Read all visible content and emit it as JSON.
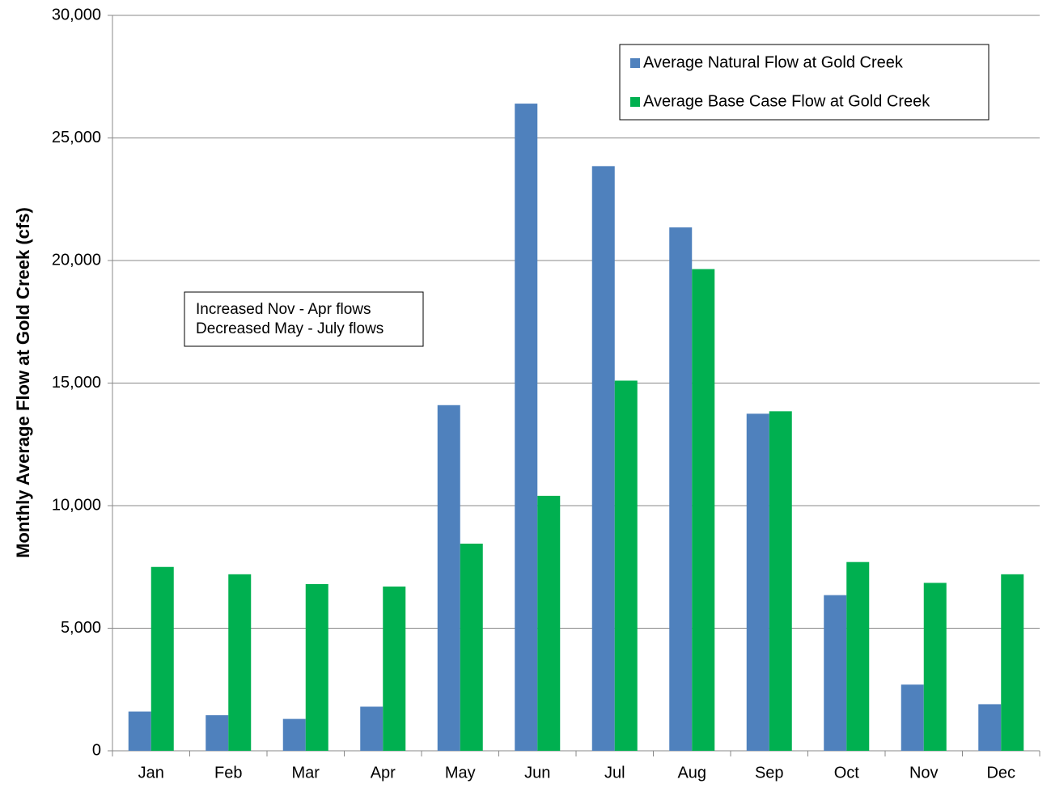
{
  "chart_data": {
    "type": "bar",
    "y_label": "Monthly Average Flow at Gold Creek (cfs)",
    "annotation": [
      "Increased Nov - Apr flows",
      "Decreased May - July flows"
    ],
    "categories": [
      "Jan",
      "Feb",
      "Mar",
      "Apr",
      "May",
      "Jun",
      "Jul",
      "Aug",
      "Sep",
      "Oct",
      "Nov",
      "Dec"
    ],
    "series": [
      {
        "name": "Average Natural Flow at Gold Creek",
        "color": "#4f81bd",
        "values": [
          1600,
          1450,
          1300,
          1800,
          14100,
          26400,
          23850,
          21350,
          13750,
          6350,
          2700,
          1900
        ]
      },
      {
        "name": "Average Base Case Flow at Gold Creek",
        "color": "#00b050",
        "values": [
          7500,
          7200,
          6800,
          6700,
          8450,
          10400,
          15100,
          19650,
          13850,
          7700,
          6850,
          7200
        ]
      }
    ],
    "ylim": [
      0,
      30000
    ],
    "yticks": [
      0,
      {
        "value": 5000,
        "label": "5,000"
      },
      {
        "value": 10000,
        "label": "10,000"
      },
      {
        "value": 15000,
        "label": "15,000"
      },
      {
        "value": 20000,
        "label": "20,000"
      },
      {
        "value": 25000,
        "label": "25,000"
      },
      {
        "value": 30000,
        "label": "30,000"
      }
    ],
    "grid": true,
    "legend": "top-right"
  }
}
